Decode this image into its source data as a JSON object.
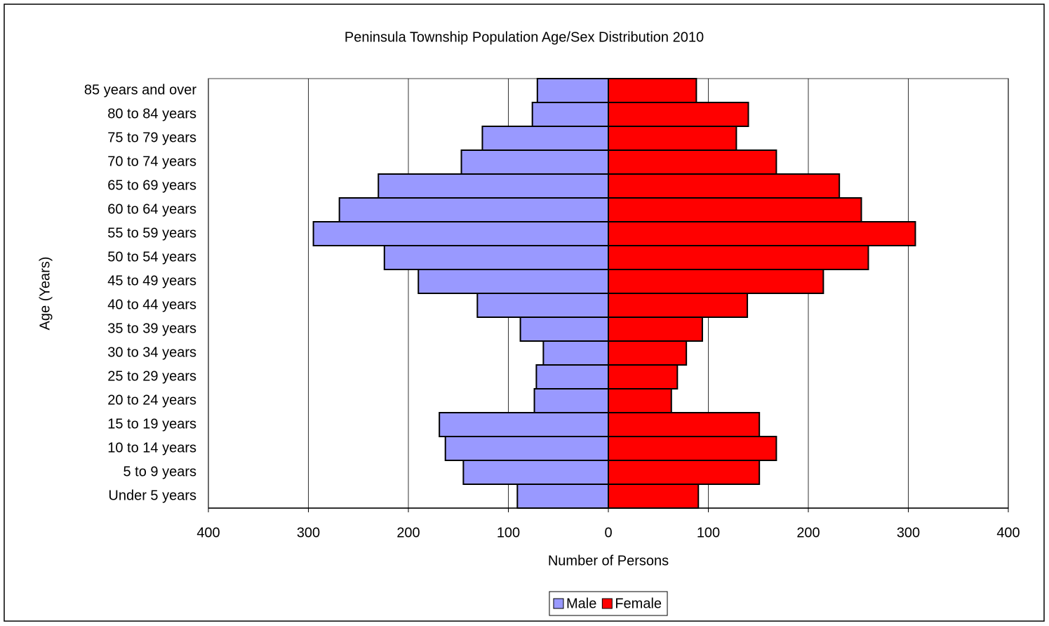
{
  "chart_data": {
    "type": "bar",
    "orientation": "horizontal",
    "title": "Peninsula Township Population Age/Sex Distribution 2010",
    "x_label": "Number of Persons",
    "y_label": "Age (Years)",
    "categories": [
      "Under 5 years",
      "5 to 9 years",
      "10 to 14 years",
      "15 to 19 years",
      "20 to 24 years",
      "25 to 29 years",
      "30 to 34 years",
      "35 to 39 years",
      "40 to 44 years",
      "45 to 49 years",
      "50 to 54 years",
      "55 to 59 years",
      "60 to 64 years",
      "65 to 69 years",
      "70 to 74 years",
      "75 to 79 years",
      "80 to 84 years",
      "85 years and over"
    ],
    "series": [
      {
        "name": "Male",
        "color": "#9999ff",
        "values": [
          -91,
          -145,
          -163,
          -169,
          -74,
          -72,
          -65,
          -88,
          -131,
          -190,
          -224,
          -295,
          -269,
          -230,
          -147,
          -126,
          -76,
          -71
        ]
      },
      {
        "name": "Female",
        "color": "#ff0000",
        "values": [
          90,
          151,
          168,
          151,
          63,
          69,
          78,
          94,
          139,
          215,
          260,
          307,
          253,
          231,
          168,
          128,
          140,
          88
        ]
      }
    ],
    "xlim": [
      -400,
      400
    ],
    "xticks": [
      {
        "value": -400,
        "label": "400"
      },
      {
        "value": -300,
        "label": "300"
      },
      {
        "value": -200,
        "label": "200"
      },
      {
        "value": -100,
        "label": "100"
      },
      0,
      100,
      200,
      300,
      400
    ],
    "negative_tick_color": "#ff0000",
    "grid": true,
    "legend": "bottom"
  }
}
